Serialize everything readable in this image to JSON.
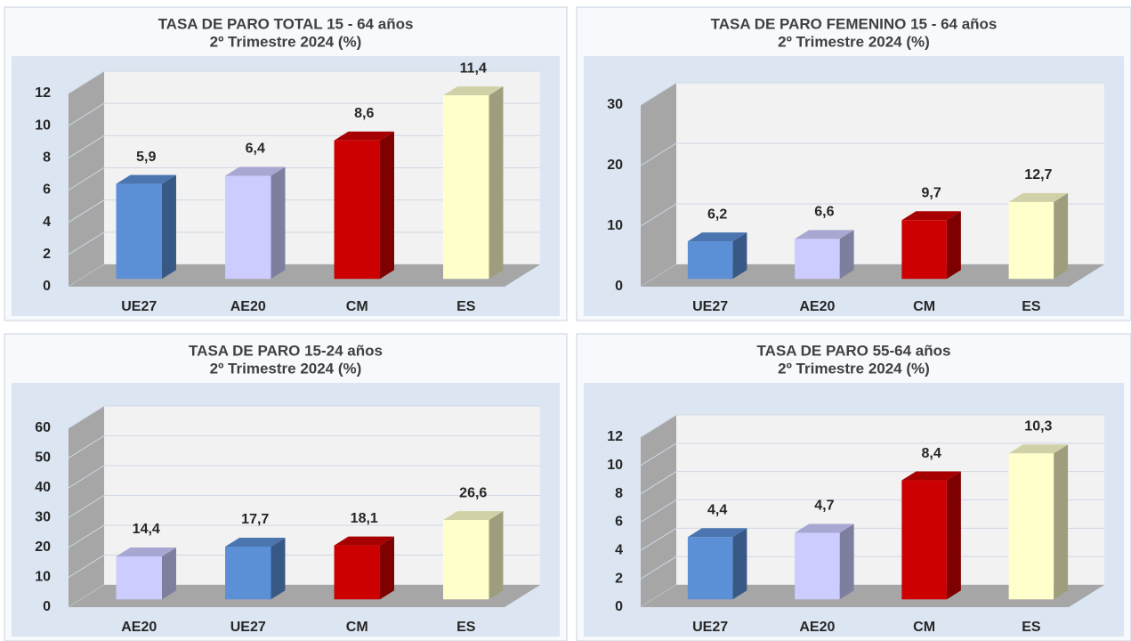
{
  "chart_data": [
    {
      "type": "bar3d",
      "title": "TASA DE PARO TOTAL 15 - 64  años",
      "subtitle": "2º Trimestre 2024 (%)",
      "categories": [
        "UE27",
        "AE20",
        "CM",
        "ES"
      ],
      "values": [
        5.9,
        6.4,
        8.6,
        11.4
      ],
      "value_labels": [
        "5,9",
        "6,4",
        "8,6",
        "11,4"
      ],
      "colors": [
        "#5b8fd6",
        "#ccccff",
        "#cc0000",
        "#ffffcc"
      ],
      "ylim": [
        0,
        12
      ],
      "yticks": [
        0,
        2,
        4,
        6,
        8,
        10,
        12
      ],
      "grid": true
    },
    {
      "type": "bar3d",
      "title": "TASA DE PARO FEMENINO  15 - 64 años",
      "subtitle": "2º Trimestre 2024 (%)",
      "categories": [
        "UE27",
        "AE20",
        "CM",
        "ES"
      ],
      "values": [
        6.2,
        6.6,
        9.7,
        12.7
      ],
      "value_labels": [
        "6,2",
        "6,6",
        "9,7",
        "12,7"
      ],
      "colors": [
        "#5b8fd6",
        "#ccccff",
        "#cc0000",
        "#ffffcc"
      ],
      "ylim": [
        0,
        30
      ],
      "yticks": [
        0,
        10,
        20,
        30
      ],
      "grid": true
    },
    {
      "type": "bar3d",
      "title": "TASA DE PARO 15-24 años",
      "subtitle": "2º  Trimestre 2024 (%)",
      "categories": [
        "AE20",
        "UE27",
        "CM",
        "ES"
      ],
      "values": [
        14.4,
        17.7,
        18.1,
        26.6
      ],
      "value_labels": [
        "14,4",
        "17,7",
        "18,1",
        "26,6"
      ],
      "colors": [
        "#ccccff",
        "#5b8fd6",
        "#cc0000",
        "#ffffcc"
      ],
      "ylim": [
        0,
        60
      ],
      "yticks": [
        0,
        10,
        20,
        30,
        40,
        50,
        60
      ],
      "grid": true
    },
    {
      "type": "bar3d",
      "title": "TASA DE PARO 55-64 años",
      "subtitle": "2º Trimestre 2024 (%)",
      "categories": [
        "UE27",
        "AE20",
        "CM",
        "ES"
      ],
      "values": [
        4.4,
        4.7,
        8.4,
        10.3
      ],
      "value_labels": [
        "4,4",
        "4,7",
        "8,4",
        "10,3"
      ],
      "colors": [
        "#5b8fd6",
        "#ccccff",
        "#cc0000",
        "#ffffcc"
      ],
      "ylim": [
        0,
        12
      ],
      "yticks": [
        0,
        2,
        4,
        6,
        8,
        10,
        12
      ],
      "grid": true
    }
  ]
}
